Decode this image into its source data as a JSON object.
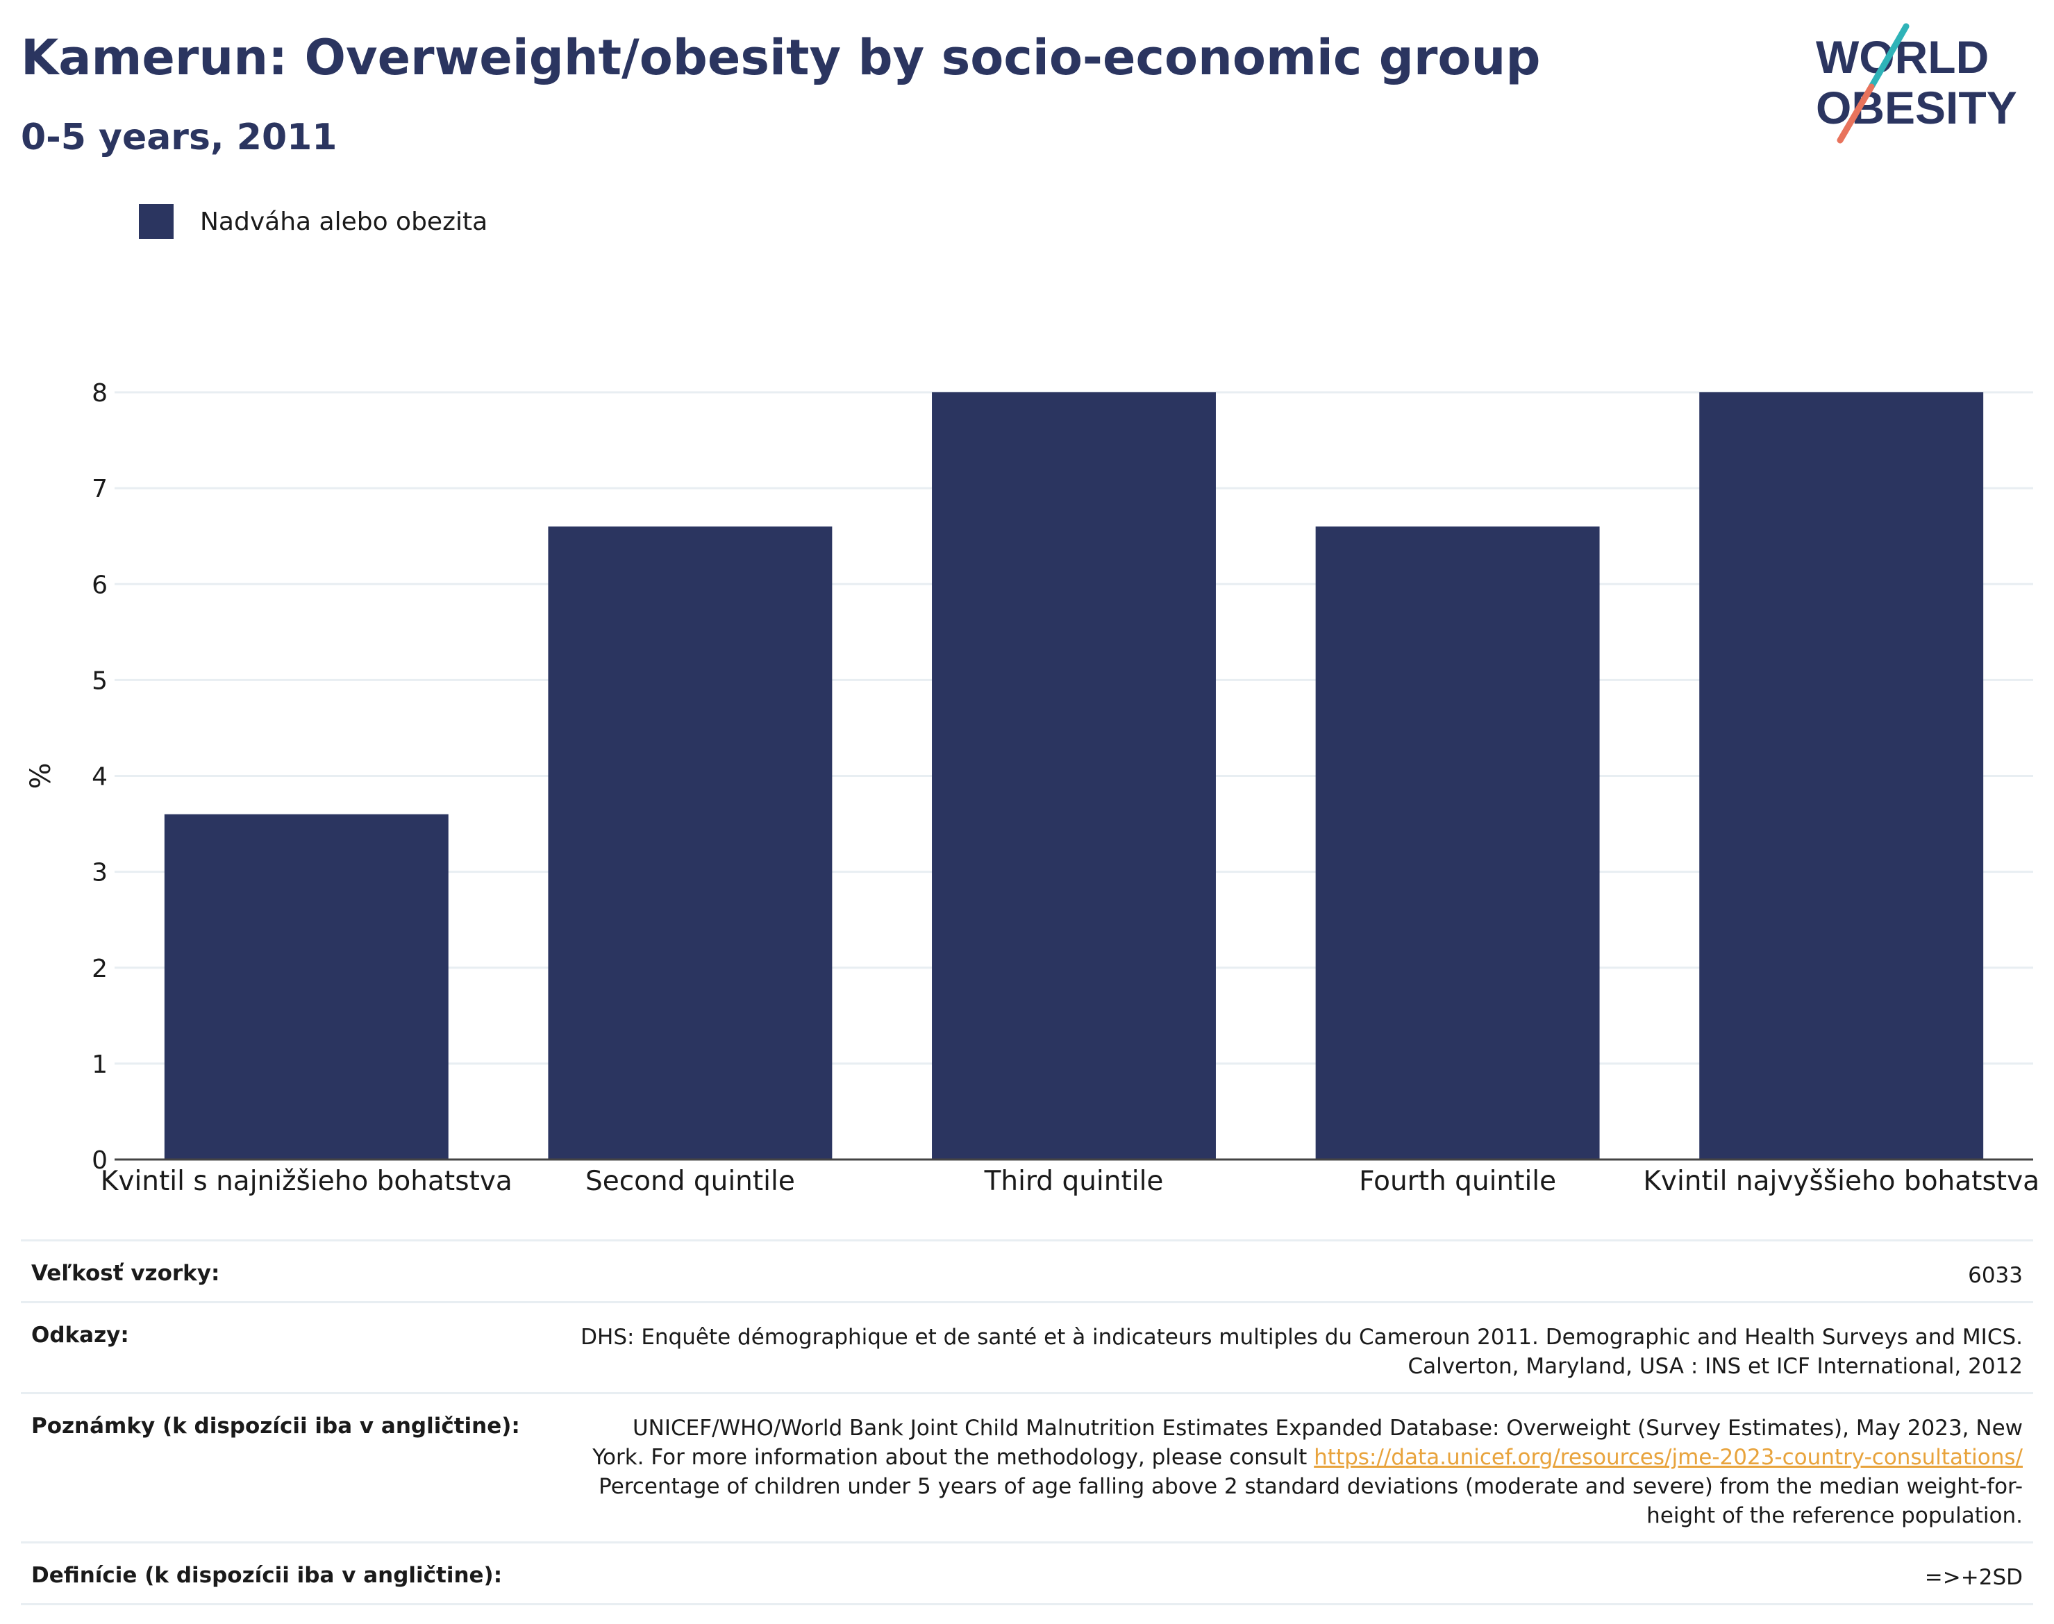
{
  "title": "Kamerun: Overweight/obesity by socio-economic group",
  "subtitle": "0-5 years, 2011",
  "logo": {
    "line1": "WORLD",
    "line2": "OBESITY"
  },
  "colors": {
    "bar": "#2b3560",
    "title": "#2b3560",
    "grid": "#e8eef2",
    "link": "#e8a33c",
    "logo_accent_teal": "#2fb3b8",
    "logo_accent_red": "#e8735c"
  },
  "chart_data": {
    "type": "bar",
    "categories": [
      "Kvintil s najnižšieho bohatstva",
      "Second quintile",
      "Third quintile",
      "Fourth quintile",
      "Kvintil najvyššieho bohatstva"
    ],
    "series": [
      {
        "name": "Nadváha alebo obezita",
        "values": [
          3.6,
          6.6,
          8.0,
          6.6,
          8.0
        ]
      }
    ],
    "ylabel": "%",
    "xlabel": "",
    "ylim": [
      0,
      8
    ],
    "yticks": [
      "0",
      "1",
      "2",
      "3",
      "4",
      "5",
      "6",
      "7",
      "8"
    ],
    "grid": true,
    "legend": "top-left"
  },
  "meta": [
    {
      "label": "Veľkosť vzorky:",
      "lines": [
        "6033"
      ]
    },
    {
      "label": "Odkazy:",
      "lines": [
        "DHS: Enquête démographique et de santé et à indicateurs multiples du Cameroun 2011. Demographic and Health Surveys and MICS.",
        "Calverton, Maryland, USA : INS et ICF International, 2012"
      ]
    },
    {
      "label": "Poznámky (k dispozícii iba v angličtine):",
      "line1": "UNICEF/WHO/World Bank Joint Child Malnutrition Estimates Expanded Database: Overweight (Survey Estimates), May 2023, New",
      "line2_prefix": "York. For more information about the methodology, please consult ",
      "link": "https://data.unicef.org/resources/jme-2023-country-consultations/",
      "line3": "Percentage of children under 5 years of age falling above 2 standard deviations (moderate and severe) from the median weight-for-",
      "line4": "height of the reference population."
    },
    {
      "label": "Definície (k dispozícii iba v angličtine):",
      "lines": [
        "=>+2SD"
      ]
    }
  ]
}
